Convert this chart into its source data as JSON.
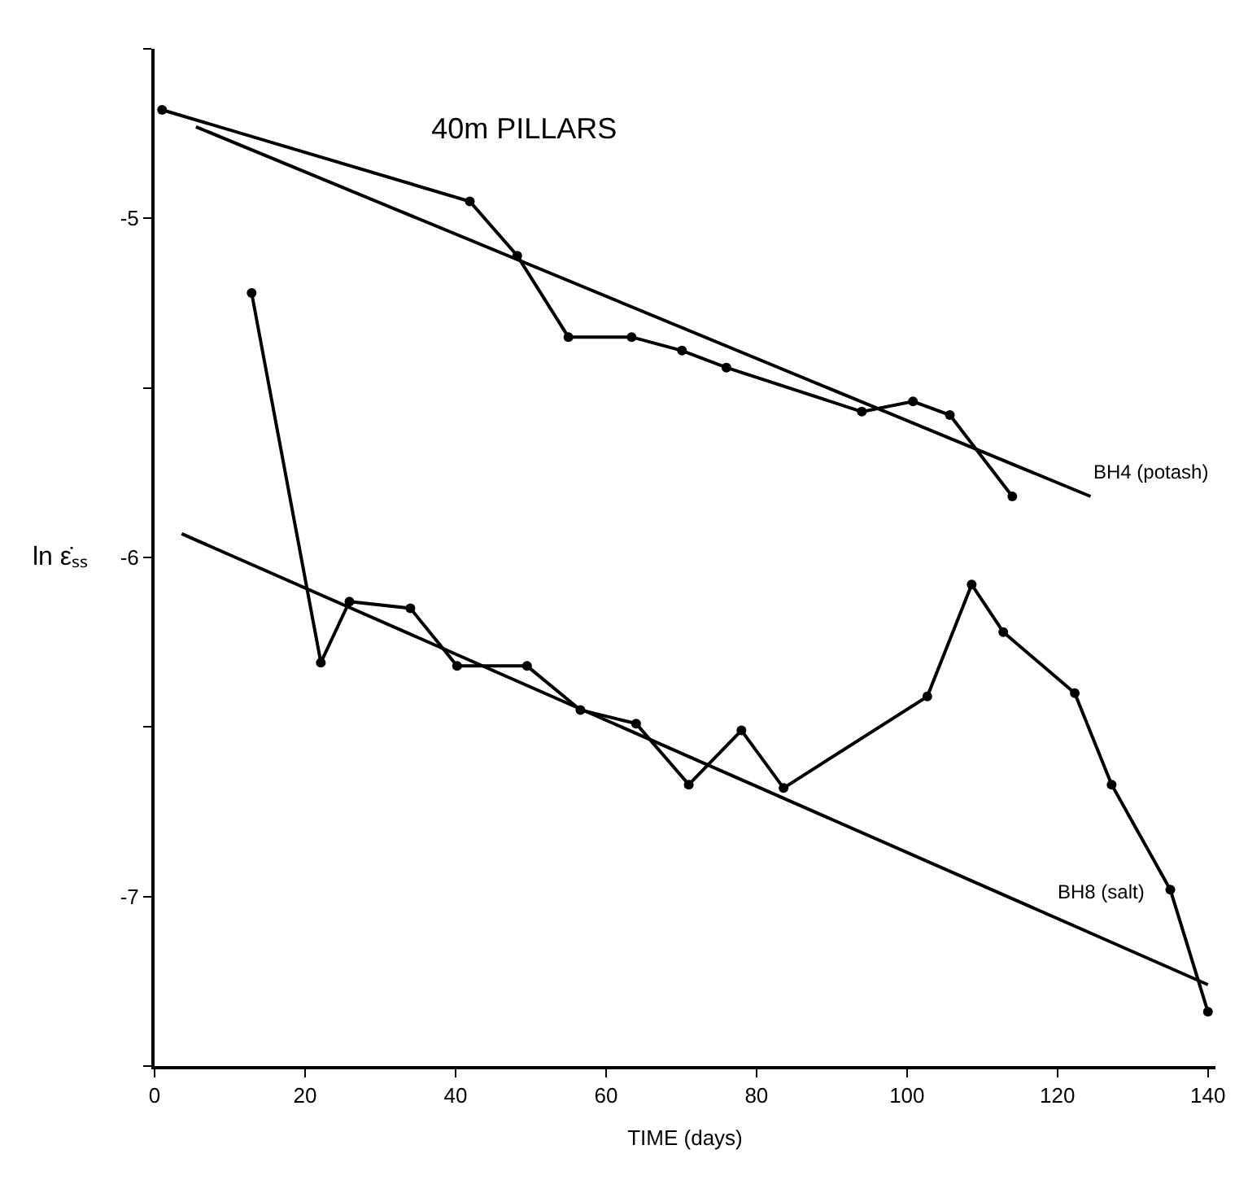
{
  "chart_data": {
    "type": "line",
    "title": "40m PILLARS",
    "xlabel": "TIME (days)",
    "ylabel": "ln ε̇ₛₛ",
    "xlim": [
      0,
      141
    ],
    "xticks": [
      0,
      20,
      40,
      60,
      80,
      100,
      120,
      140
    ],
    "ylim": [
      -7.5,
      -4.5
    ],
    "yticks": [
      {
        "value": -7.5,
        "label": null
      },
      -7,
      {
        "value": -6.5,
        "label": null
      },
      -6,
      {
        "value": -5.5,
        "label": null
      },
      -5,
      {
        "value": -4.5,
        "label": null
      }
    ],
    "legend": false,
    "series": [
      {
        "color": "#000000",
        "marker": "circle",
        "x": [
          1,
          41.9,
          48.2,
          55,
          63.4,
          70.1,
          76,
          94,
          100.8,
          105.7,
          114
        ],
        "values": [
          -4.68,
          -4.95,
          -5.11,
          -5.35,
          -5.35,
          -5.39,
          -5.44,
          -5.57,
          -5.54,
          -5.58,
          -5.82
        ]
      },
      {
        "name": "BH4 (potash)",
        "color": "#000000",
        "marker": "none",
        "x": [
          5.5,
          124.4
        ],
        "values": [
          -4.73,
          -5.82
        ]
      },
      {
        "color": "#000000",
        "marker": "circle",
        "x": [
          12.9,
          22.1,
          25.9,
          34,
          40.2,
          49.5,
          56.6,
          64,
          71,
          78,
          83.6,
          102.7,
          108.6,
          112.8,
          122.3,
          127.2,
          135,
          140
        ],
        "values": [
          -5.22,
          -6.31,
          -6.13,
          -6.15,
          -6.32,
          -6.32,
          -6.45,
          -6.49,
          -6.67,
          -6.51,
          -6.68,
          -6.41,
          -6.08,
          -6.22,
          -6.4,
          -6.67,
          -6.98,
          -7.34
        ]
      },
      {
        "name": "BH8 (salt)",
        "color": "#000000",
        "marker": "none",
        "x": [
          3.6,
          140
        ],
        "values": [
          -5.93,
          -7.26
        ]
      }
    ]
  }
}
